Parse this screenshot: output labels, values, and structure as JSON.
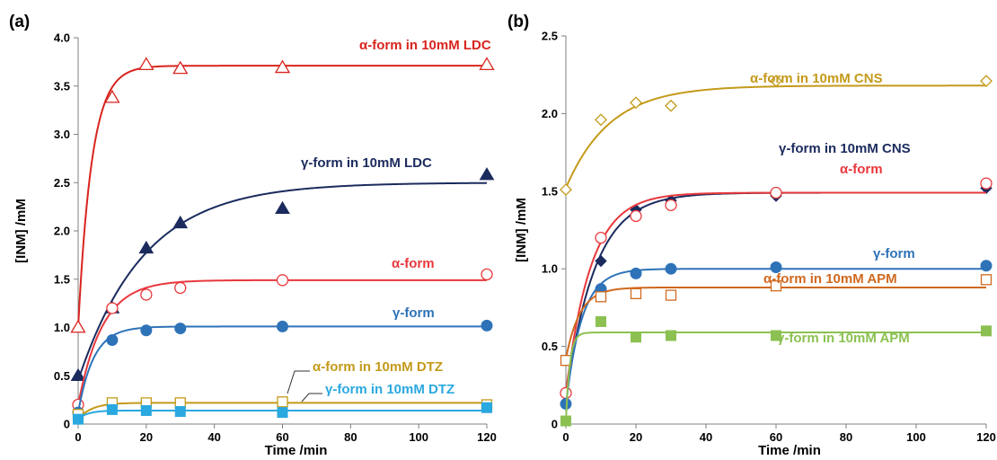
{
  "chart_data": [
    {
      "type": "scatter",
      "panel_label": "(a)",
      "xlabel": "Time /min",
      "ylabel": "[INM] /mM",
      "xlim": [
        0,
        120
      ],
      "ylim": [
        0,
        4.0
      ],
      "xticks": [
        "0",
        "20",
        "40",
        "60",
        "80",
        "100",
        "120"
      ],
      "yticks": [
        "0",
        "0.5",
        "1.0",
        "1.5",
        "2.0",
        "2.5",
        "3.0",
        "3.5",
        "4.0"
      ],
      "grid": false,
      "series": [
        {
          "name": "α-form in 10mM LDC",
          "marker": "open-triangle",
          "color": "#d9241e",
          "x": [
            0,
            10,
            20,
            30,
            60,
            120
          ],
          "y": [
            1.0,
            3.38,
            3.72,
            3.68,
            3.69,
            3.72
          ],
          "fit": {
            "y0": 1.0,
            "ymax": 3.71,
            "k": 0.25
          }
        },
        {
          "name": "γ-form in 10mM LDC",
          "marker": "filled-triangle",
          "color": "#1b2b5e",
          "x": [
            0,
            10,
            20,
            30,
            60,
            120
          ],
          "y": [
            0.5,
            1.2,
            1.82,
            2.08,
            2.23,
            2.58
          ],
          "fit": {
            "y0": 0.45,
            "ymax": 2.5,
            "k": 0.052
          }
        },
        {
          "name": "α-form",
          "marker": "open-circle",
          "color": "#e8383d",
          "x": [
            0,
            10,
            20,
            30,
            60,
            120
          ],
          "y": [
            0.2,
            1.2,
            1.34,
            1.41,
            1.49,
            1.55
          ],
          "fit": {
            "y0": 0.2,
            "ymax": 1.49,
            "k": 0.14
          }
        },
        {
          "name": "γ-form",
          "marker": "filled-circle",
          "color": "#2e73b8",
          "x": [
            0,
            10,
            20,
            30,
            60,
            120
          ],
          "y": [
            0.12,
            0.87,
            0.97,
            0.99,
            1.01,
            1.02
          ],
          "fit": {
            "y0": 0.12,
            "ymax": 1.01,
            "k": 0.22
          }
        },
        {
          "name": "α-form in 10mM DTZ",
          "marker": "open-square",
          "color": "#c49a1a",
          "x": [
            0,
            10,
            20,
            30,
            60,
            120
          ],
          "y": [
            0.1,
            0.22,
            0.22,
            0.22,
            0.23,
            0.2
          ],
          "fit": {
            "y0": 0.05,
            "ymax": 0.22,
            "k": 0.25
          }
        },
        {
          "name": "γ-form in 10mM DTZ",
          "marker": "filled-square",
          "color": "#2aa8e0",
          "x": [
            0,
            10,
            20,
            30,
            60,
            120
          ],
          "y": [
            0.05,
            0.15,
            0.14,
            0.13,
            0.12,
            0.17
          ],
          "fit": {
            "y0": 0.05,
            "ymax": 0.14,
            "k": 0.35
          }
        }
      ]
    },
    {
      "type": "scatter",
      "panel_label": "(b)",
      "xlabel": "Time /min",
      "ylabel": "[INM] /mM",
      "xlim": [
        0,
        120
      ],
      "ylim": [
        0,
        2.5
      ],
      "xticks": [
        "0",
        "20",
        "40",
        "60",
        "80",
        "100",
        "120"
      ],
      "yticks": [
        "0",
        "0.5",
        "1.0",
        "1.5",
        "2.0",
        "2.5"
      ],
      "grid": false,
      "series": [
        {
          "name": "α-form in 10mM CNS",
          "marker": "open-diamond",
          "color": "#c49a1a",
          "x": [
            0,
            10,
            20,
            30,
            60,
            120
          ],
          "y": [
            1.51,
            1.96,
            2.07,
            2.05,
            2.21,
            2.21
          ],
          "fit": {
            "y0": 1.52,
            "ymax": 2.18,
            "k": 0.08
          }
        },
        {
          "name": "γ-form in 10mM CNS",
          "marker": "filled-diamond",
          "color": "#1b2b5e",
          "x": [
            0,
            10,
            20,
            30,
            60,
            120
          ],
          "y": [
            0.19,
            1.05,
            1.38,
            1.44,
            1.47,
            1.52
          ],
          "fit": {
            "y0": 0.17,
            "ymax": 1.49,
            "k": 0.12
          }
        },
        {
          "name": "α-form",
          "marker": "open-circle",
          "color": "#e8383d",
          "x": [
            0,
            10,
            20,
            30,
            60,
            120
          ],
          "y": [
            0.2,
            1.2,
            1.34,
            1.41,
            1.49,
            1.55
          ],
          "fit": {
            "y0": 0.2,
            "ymax": 1.49,
            "k": 0.14
          }
        },
        {
          "name": "γ-form",
          "marker": "filled-circle",
          "color": "#2e73b8",
          "x": [
            0,
            10,
            20,
            30,
            60,
            120
          ],
          "y": [
            0.13,
            0.87,
            0.97,
            1.0,
            1.01,
            1.02
          ],
          "fit": {
            "y0": 0.12,
            "ymax": 1.0,
            "k": 0.22
          }
        },
        {
          "name": "α-form in 10mM APM",
          "marker": "open-square",
          "color": "#d0691f",
          "x": [
            0,
            10,
            20,
            30,
            60,
            120
          ],
          "y": [
            0.41,
            0.82,
            0.84,
            0.83,
            0.89,
            0.93
          ],
          "fit": {
            "y0": 0.42,
            "ymax": 0.88,
            "k": 0.25
          }
        },
        {
          "name": "γ-form in 10mM APM",
          "marker": "filled-square",
          "color": "#8cc152",
          "x": [
            0,
            10,
            20,
            30,
            60,
            120
          ],
          "y": [
            0.02,
            0.66,
            0.56,
            0.57,
            0.57,
            0.6
          ],
          "fit": {
            "y0": 0.02,
            "ymax": 0.59,
            "k": 0.9
          }
        }
      ]
    }
  ]
}
